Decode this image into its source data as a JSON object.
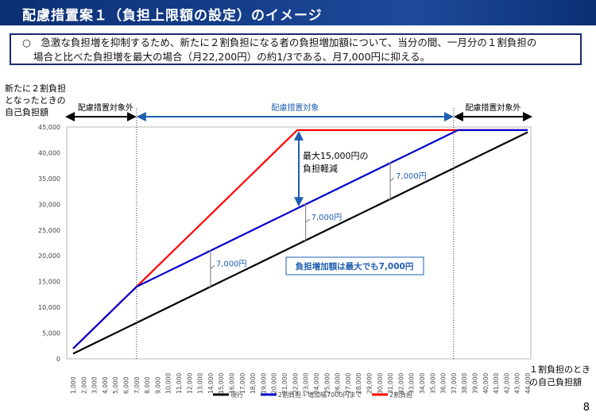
{
  "header": {
    "title": "配慮措置案１（負担上限額の設定）のイメージ"
  },
  "summary": {
    "line1": "○　急激な負担増を抑制するため、新たに２割負担になる者の負担増加額について、当分の間、一月分の１割負担の",
    "line2": "場合と比べた負担増を最大の場合（月22,200円）の約1/3である、月7,000円に抑える。"
  },
  "page_number": "8",
  "chart_data": {
    "type": "line",
    "ylabel": "新たに２割負担となったときの自己負担額",
    "xlabel": "１割負担のときの自己負担額",
    "ylim": [
      0,
      45000
    ],
    "yticks": [
      "0",
      "5,000",
      "10,000",
      "15,000",
      "20,000",
      "25,000",
      "30,000",
      "35,000",
      "40,000",
      "45,000"
    ],
    "x": [
      1000,
      2000,
      3000,
      4000,
      5000,
      6000,
      7000,
      8000,
      9000,
      10000,
      11000,
      12000,
      13000,
      14000,
      15000,
      16000,
      17000,
      18000,
      19000,
      20000,
      21000,
      22000,
      23000,
      24000,
      25000,
      26000,
      27000,
      28000,
      29000,
      30000,
      31000,
      32000,
      33000,
      34000,
      35000,
      36000,
      37000,
      38000,
      39000,
      40000,
      41000,
      42000,
      43000,
      44000
    ],
    "series": [
      {
        "name": "現行",
        "color": "#000000",
        "rule": "1x"
      },
      {
        "name": "2割負担＋増加幅7000円まで",
        "color": "#0000cc",
        "rule": "min(2x, x+7000, 44400)"
      },
      {
        "name": "2割負担",
        "color": "#ff0000",
        "rule": "min(2x, 44400)"
      }
    ],
    "cap": 44400,
    "zones": [
      "配慮措置対象外",
      "配慮措置対象",
      "配慮措置対象外"
    ],
    "annotations": {
      "max_reduction": [
        "最大15,000円の",
        "負担軽減"
      ],
      "increase": "7,000円",
      "box": "負担増加額は最大でも7,000円"
    }
  }
}
